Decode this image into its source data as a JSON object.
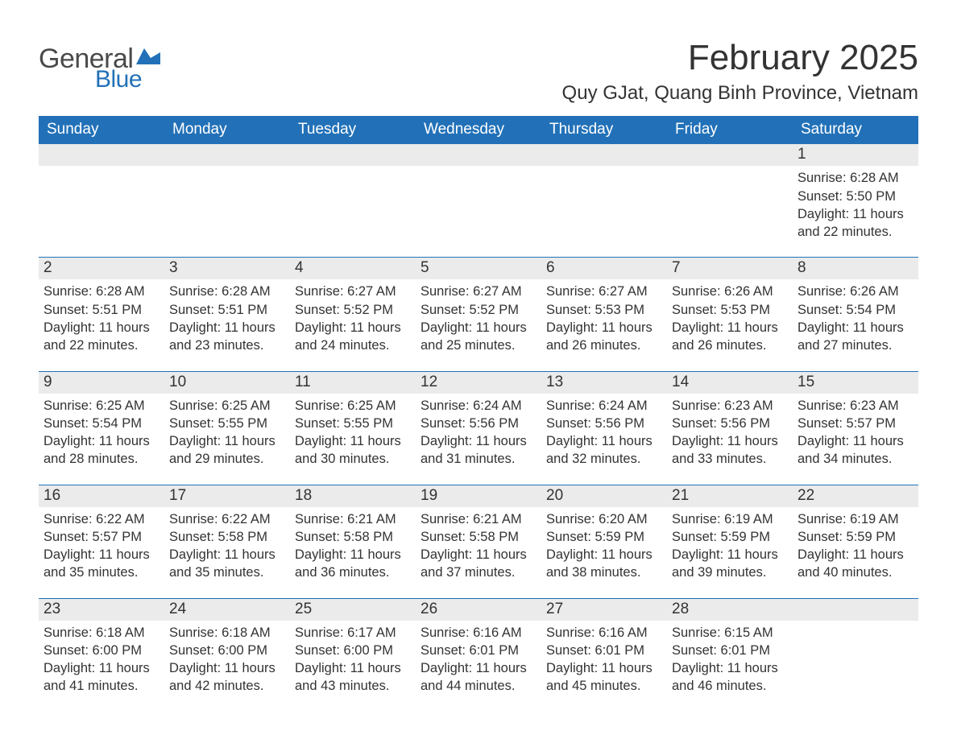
{
  "brand": {
    "word1": "General",
    "word2": "Blue",
    "flag_color": "#2271b8"
  },
  "header": {
    "month_title": "February 2025",
    "location": "Quy GJat, Quang Binh Province, Vietnam"
  },
  "colors": {
    "header_bg": "#2271b8",
    "header_text": "#ffffff",
    "daynum_bg": "#ebebeb",
    "text": "#333333",
    "row_border": "#2271b8"
  },
  "weekdays": [
    "Sunday",
    "Monday",
    "Tuesday",
    "Wednesday",
    "Thursday",
    "Friday",
    "Saturday"
  ],
  "weeks": [
    [
      null,
      null,
      null,
      null,
      null,
      null,
      {
        "n": "1",
        "sunrise": "Sunrise: 6:28 AM",
        "sunset": "Sunset: 5:50 PM",
        "day1": "Daylight: 11 hours",
        "day2": "and 22 minutes."
      }
    ],
    [
      {
        "n": "2",
        "sunrise": "Sunrise: 6:28 AM",
        "sunset": "Sunset: 5:51 PM",
        "day1": "Daylight: 11 hours",
        "day2": "and 22 minutes."
      },
      {
        "n": "3",
        "sunrise": "Sunrise: 6:28 AM",
        "sunset": "Sunset: 5:51 PM",
        "day1": "Daylight: 11 hours",
        "day2": "and 23 minutes."
      },
      {
        "n": "4",
        "sunrise": "Sunrise: 6:27 AM",
        "sunset": "Sunset: 5:52 PM",
        "day1": "Daylight: 11 hours",
        "day2": "and 24 minutes."
      },
      {
        "n": "5",
        "sunrise": "Sunrise: 6:27 AM",
        "sunset": "Sunset: 5:52 PM",
        "day1": "Daylight: 11 hours",
        "day2": "and 25 minutes."
      },
      {
        "n": "6",
        "sunrise": "Sunrise: 6:27 AM",
        "sunset": "Sunset: 5:53 PM",
        "day1": "Daylight: 11 hours",
        "day2": "and 26 minutes."
      },
      {
        "n": "7",
        "sunrise": "Sunrise: 6:26 AM",
        "sunset": "Sunset: 5:53 PM",
        "day1": "Daylight: 11 hours",
        "day2": "and 26 minutes."
      },
      {
        "n": "8",
        "sunrise": "Sunrise: 6:26 AM",
        "sunset": "Sunset: 5:54 PM",
        "day1": "Daylight: 11 hours",
        "day2": "and 27 minutes."
      }
    ],
    [
      {
        "n": "9",
        "sunrise": "Sunrise: 6:25 AM",
        "sunset": "Sunset: 5:54 PM",
        "day1": "Daylight: 11 hours",
        "day2": "and 28 minutes."
      },
      {
        "n": "10",
        "sunrise": "Sunrise: 6:25 AM",
        "sunset": "Sunset: 5:55 PM",
        "day1": "Daylight: 11 hours",
        "day2": "and 29 minutes."
      },
      {
        "n": "11",
        "sunrise": "Sunrise: 6:25 AM",
        "sunset": "Sunset: 5:55 PM",
        "day1": "Daylight: 11 hours",
        "day2": "and 30 minutes."
      },
      {
        "n": "12",
        "sunrise": "Sunrise: 6:24 AM",
        "sunset": "Sunset: 5:56 PM",
        "day1": "Daylight: 11 hours",
        "day2": "and 31 minutes."
      },
      {
        "n": "13",
        "sunrise": "Sunrise: 6:24 AM",
        "sunset": "Sunset: 5:56 PM",
        "day1": "Daylight: 11 hours",
        "day2": "and 32 minutes."
      },
      {
        "n": "14",
        "sunrise": "Sunrise: 6:23 AM",
        "sunset": "Sunset: 5:56 PM",
        "day1": "Daylight: 11 hours",
        "day2": "and 33 minutes."
      },
      {
        "n": "15",
        "sunrise": "Sunrise: 6:23 AM",
        "sunset": "Sunset: 5:57 PM",
        "day1": "Daylight: 11 hours",
        "day2": "and 34 minutes."
      }
    ],
    [
      {
        "n": "16",
        "sunrise": "Sunrise: 6:22 AM",
        "sunset": "Sunset: 5:57 PM",
        "day1": "Daylight: 11 hours",
        "day2": "and 35 minutes."
      },
      {
        "n": "17",
        "sunrise": "Sunrise: 6:22 AM",
        "sunset": "Sunset: 5:58 PM",
        "day1": "Daylight: 11 hours",
        "day2": "and 35 minutes."
      },
      {
        "n": "18",
        "sunrise": "Sunrise: 6:21 AM",
        "sunset": "Sunset: 5:58 PM",
        "day1": "Daylight: 11 hours",
        "day2": "and 36 minutes."
      },
      {
        "n": "19",
        "sunrise": "Sunrise: 6:21 AM",
        "sunset": "Sunset: 5:58 PM",
        "day1": "Daylight: 11 hours",
        "day2": "and 37 minutes."
      },
      {
        "n": "20",
        "sunrise": "Sunrise: 6:20 AM",
        "sunset": "Sunset: 5:59 PM",
        "day1": "Daylight: 11 hours",
        "day2": "and 38 minutes."
      },
      {
        "n": "21",
        "sunrise": "Sunrise: 6:19 AM",
        "sunset": "Sunset: 5:59 PM",
        "day1": "Daylight: 11 hours",
        "day2": "and 39 minutes."
      },
      {
        "n": "22",
        "sunrise": "Sunrise: 6:19 AM",
        "sunset": "Sunset: 5:59 PM",
        "day1": "Daylight: 11 hours",
        "day2": "and 40 minutes."
      }
    ],
    [
      {
        "n": "23",
        "sunrise": "Sunrise: 6:18 AM",
        "sunset": "Sunset: 6:00 PM",
        "day1": "Daylight: 11 hours",
        "day2": "and 41 minutes."
      },
      {
        "n": "24",
        "sunrise": "Sunrise: 6:18 AM",
        "sunset": "Sunset: 6:00 PM",
        "day1": "Daylight: 11 hours",
        "day2": "and 42 minutes."
      },
      {
        "n": "25",
        "sunrise": "Sunrise: 6:17 AM",
        "sunset": "Sunset: 6:00 PM",
        "day1": "Daylight: 11 hours",
        "day2": "and 43 minutes."
      },
      {
        "n": "26",
        "sunrise": "Sunrise: 6:16 AM",
        "sunset": "Sunset: 6:01 PM",
        "day1": "Daylight: 11 hours",
        "day2": "and 44 minutes."
      },
      {
        "n": "27",
        "sunrise": "Sunrise: 6:16 AM",
        "sunset": "Sunset: 6:01 PM",
        "day1": "Daylight: 11 hours",
        "day2": "and 45 minutes."
      },
      {
        "n": "28",
        "sunrise": "Sunrise: 6:15 AM",
        "sunset": "Sunset: 6:01 PM",
        "day1": "Daylight: 11 hours",
        "day2": "and 46 minutes."
      },
      null
    ]
  ]
}
